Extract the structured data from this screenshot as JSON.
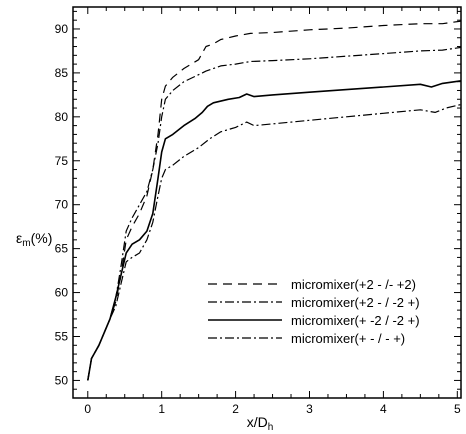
{
  "chart_data": {
    "type": "line",
    "title": "",
    "xlabel": "x/D",
    "xlabel_sub": "h",
    "ylabel": "ε",
    "ylabel_sub": "m",
    "ylabel_suffix": "(%)",
    "xlim": [
      -0.2,
      5.05
    ],
    "ylim": [
      48,
      92.5
    ],
    "x_ticks": [
      0,
      1,
      2,
      3,
      4,
      5
    ],
    "x_tick_labels": [
      "0",
      "1",
      "2",
      "3",
      "4",
      "5"
    ],
    "y_ticks": [
      50,
      55,
      60,
      65,
      70,
      75,
      80,
      85,
      90
    ],
    "y_tick_labels": [
      "50",
      "55",
      "60",
      "65",
      "70",
      "75",
      "80",
      "85",
      "90"
    ],
    "grid": false,
    "legend_position": "bottom-right",
    "series": [
      {
        "name": "micromixer(+2 - /- +2)",
        "dash": "long-dash",
        "points": [
          [
            0,
            50
          ],
          [
            0.05,
            52.5
          ],
          [
            0.15,
            54
          ],
          [
            0.3,
            57
          ],
          [
            0.38,
            59
          ],
          [
            0.45,
            62
          ],
          [
            0.52,
            66
          ],
          [
            0.6,
            67.5
          ],
          [
            0.7,
            69
          ],
          [
            0.8,
            71
          ],
          [
            0.88,
            74
          ],
          [
            0.95,
            78
          ],
          [
            1.0,
            82
          ],
          [
            1.05,
            83.5
          ],
          [
            1.15,
            84.5
          ],
          [
            1.3,
            85.5
          ],
          [
            1.5,
            86.5
          ],
          [
            1.6,
            88
          ],
          [
            1.7,
            88.3
          ],
          [
            1.8,
            88.8
          ],
          [
            2.0,
            89.2
          ],
          [
            2.2,
            89.5
          ],
          [
            2.5,
            89.6
          ],
          [
            3.0,
            89.9
          ],
          [
            3.5,
            90.1
          ],
          [
            4.0,
            90.4
          ],
          [
            4.5,
            90.6
          ],
          [
            4.8,
            90.6
          ],
          [
            5.05,
            90.9
          ]
        ]
      },
      {
        "name": "micromixer(+2 - / -2 +)",
        "dash": "dash-dot",
        "points": [
          [
            0,
            50
          ],
          [
            0.05,
            52.5
          ],
          [
            0.15,
            54
          ],
          [
            0.3,
            57
          ],
          [
            0.38,
            59.5
          ],
          [
            0.45,
            63
          ],
          [
            0.52,
            67
          ],
          [
            0.6,
            68.5
          ],
          [
            0.7,
            70
          ],
          [
            0.8,
            71.5
          ],
          [
            0.88,
            74
          ],
          [
            0.95,
            77
          ],
          [
            1.0,
            80
          ],
          [
            1.05,
            82
          ],
          [
            1.15,
            83
          ],
          [
            1.3,
            84
          ],
          [
            1.5,
            84.8
          ],
          [
            1.6,
            85.2
          ],
          [
            1.8,
            85.8
          ],
          [
            2.0,
            86.0
          ],
          [
            2.2,
            86.3
          ],
          [
            2.5,
            86.4
          ],
          [
            3.0,
            86.6
          ],
          [
            3.5,
            86.9
          ],
          [
            4.0,
            87.2
          ],
          [
            4.5,
            87.5
          ],
          [
            4.8,
            87.6
          ],
          [
            5.05,
            87.9
          ]
        ]
      },
      {
        "name": "micromixer(+ -2 / -2 +)",
        "dash": "solid",
        "points": [
          [
            0,
            50
          ],
          [
            0.05,
            52.5
          ],
          [
            0.15,
            54
          ],
          [
            0.3,
            57
          ],
          [
            0.38,
            59.5
          ],
          [
            0.45,
            62
          ],
          [
            0.52,
            64.5
          ],
          [
            0.6,
            65.5
          ],
          [
            0.7,
            66
          ],
          [
            0.8,
            67
          ],
          [
            0.88,
            69
          ],
          [
            0.95,
            73
          ],
          [
            1.0,
            76
          ],
          [
            1.05,
            77.5
          ],
          [
            1.15,
            78
          ],
          [
            1.3,
            79
          ],
          [
            1.45,
            79.8
          ],
          [
            1.55,
            80.5
          ],
          [
            1.62,
            81.2
          ],
          [
            1.7,
            81.6
          ],
          [
            1.9,
            82.0
          ],
          [
            2.05,
            82.2
          ],
          [
            2.15,
            82.6
          ],
          [
            2.25,
            82.3
          ],
          [
            2.5,
            82.5
          ],
          [
            3.0,
            82.8
          ],
          [
            3.5,
            83.1
          ],
          [
            4.0,
            83.4
          ],
          [
            4.5,
            83.7
          ],
          [
            4.65,
            83.4
          ],
          [
            4.8,
            83.8
          ],
          [
            5.05,
            84.1
          ]
        ]
      },
      {
        "name": "micromixer(+ - / - +)",
        "dash": "dash-dot",
        "points": [
          [
            0,
            50
          ],
          [
            0.05,
            52.5
          ],
          [
            0.15,
            54
          ],
          [
            0.3,
            57
          ],
          [
            0.38,
            58.5
          ],
          [
            0.45,
            61
          ],
          [
            0.52,
            63.5
          ],
          [
            0.6,
            64
          ],
          [
            0.7,
            64.5
          ],
          [
            0.8,
            66
          ],
          [
            0.88,
            68
          ],
          [
            0.95,
            71
          ],
          [
            1.0,
            73
          ],
          [
            1.05,
            74
          ],
          [
            1.15,
            74.5
          ],
          [
            1.3,
            75.5
          ],
          [
            1.5,
            76.5
          ],
          [
            1.65,
            77.5
          ],
          [
            1.8,
            78.3
          ],
          [
            2.0,
            78.8
          ],
          [
            2.15,
            79.4
          ],
          [
            2.25,
            79.0
          ],
          [
            2.5,
            79.2
          ],
          [
            3.0,
            79.6
          ],
          [
            3.5,
            80.0
          ],
          [
            4.0,
            80.4
          ],
          [
            4.5,
            80.8
          ],
          [
            4.7,
            80.5
          ],
          [
            4.85,
            81.0
          ],
          [
            5.05,
            81.4
          ]
        ]
      }
    ]
  }
}
